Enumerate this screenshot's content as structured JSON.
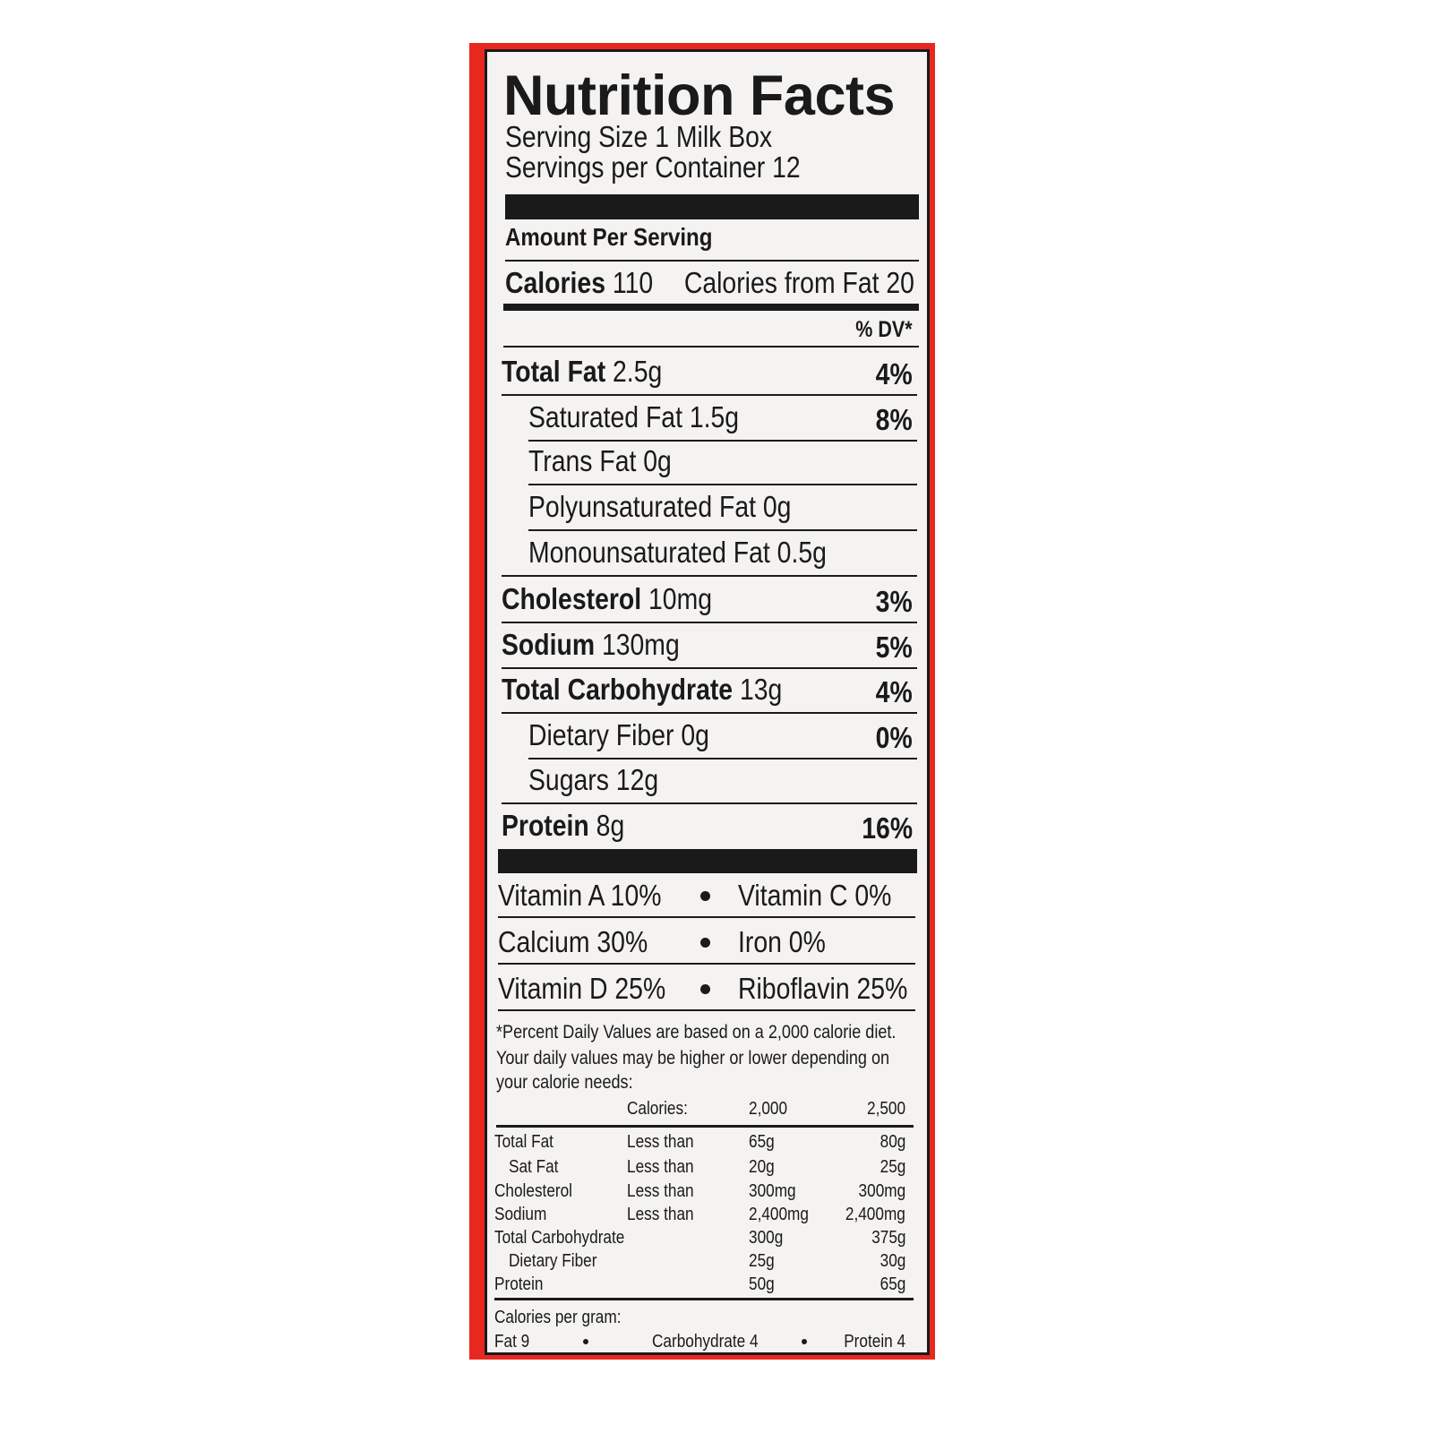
{
  "title": "Nutrition Facts",
  "serving_size": "Serving Size 1 Milk Box",
  "servings_per_container": "Servings per Container 12",
  "amount_per_serving": "Amount Per Serving",
  "calories": {
    "label": "Calories",
    "value": "110",
    "from_fat": "Calories from Fat 20"
  },
  "dv_header": "% DV*",
  "nutrients": [
    {
      "label": "Total Fat",
      "amount": "2.5g",
      "dv": "4%",
      "bold": true,
      "indent": false
    },
    {
      "label": "Saturated Fat",
      "amount": "1.5g",
      "dv": "8%",
      "bold": false,
      "indent": true
    },
    {
      "label": "Trans Fat",
      "amount": "0g",
      "dv": "",
      "bold": false,
      "indent": true
    },
    {
      "label": "Polyunsaturated Fat",
      "amount": "0g",
      "dv": "",
      "bold": false,
      "indent": true
    },
    {
      "label": "Monounsaturated Fat",
      "amount": "0.5g",
      "dv": "",
      "bold": false,
      "indent": true
    },
    {
      "label": "Cholesterol",
      "amount": "10mg",
      "dv": "3%",
      "bold": true,
      "indent": false
    },
    {
      "label": "Sodium",
      "amount": "130mg",
      "dv": "5%",
      "bold": true,
      "indent": false
    },
    {
      "label": "Total Carbohydrate",
      "amount": "13g",
      "dv": "4%",
      "bold": true,
      "indent": false
    },
    {
      "label": "Dietary Fiber",
      "amount": "0g",
      "dv": "0%",
      "bold": false,
      "indent": true
    },
    {
      "label": "Sugars",
      "amount": "12g",
      "dv": "",
      "bold": false,
      "indent": true
    },
    {
      "label": "Protein",
      "amount": "8g",
      "dv": "16%",
      "bold": true,
      "indent": false
    }
  ],
  "vitamins": [
    {
      "left": "Vitamin A 10%",
      "right": "Vitamin C 0%"
    },
    {
      "left": "Calcium 30%",
      "right": "Iron 0%"
    },
    {
      "left": "Vitamin D 25%",
      "right": "Riboflavin 25%"
    }
  ],
  "footnote": [
    "*Percent Daily Values are based on a 2,000 calorie diet.",
    "Your daily values may be higher or lower depending on",
    "your calorie needs:"
  ],
  "dv_table": {
    "header": {
      "label": "Calories:",
      "c2000": "2,000",
      "c2500": "2,500"
    },
    "rows": [
      {
        "name": "Total Fat",
        "qual": "Less than",
        "c2000": "65g",
        "c2500": "80g",
        "indent": false
      },
      {
        "name": "Sat Fat",
        "qual": "Less than",
        "c2000": "20g",
        "c2500": "25g",
        "indent": true
      },
      {
        "name": "Cholesterol",
        "qual": "Less than",
        "c2000": "300mg",
        "c2500": "300mg",
        "indent": false
      },
      {
        "name": "Sodium",
        "qual": "Less than",
        "c2000": "2,400mg",
        "c2500": "2,400mg",
        "indent": false
      },
      {
        "name": "Total Carbohydrate",
        "qual": "",
        "c2000": "300g",
        "c2500": "375g",
        "indent": false
      },
      {
        "name": "Dietary Fiber",
        "qual": "",
        "c2000": "25g",
        "c2500": "30g",
        "indent": true
      },
      {
        "name": "Protein",
        "qual": "",
        "c2000": "50g",
        "c2500": "65g",
        "indent": false
      }
    ]
  },
  "calories_per_gram": {
    "label": "Calories per gram:",
    "fat": "Fat 9",
    "carb": "Carbohydrate 4",
    "protein": "Protein 4"
  },
  "colors": {
    "box_red": "#e8281f",
    "ink": "#1a1a1a",
    "paper": "#f4f3f1"
  }
}
